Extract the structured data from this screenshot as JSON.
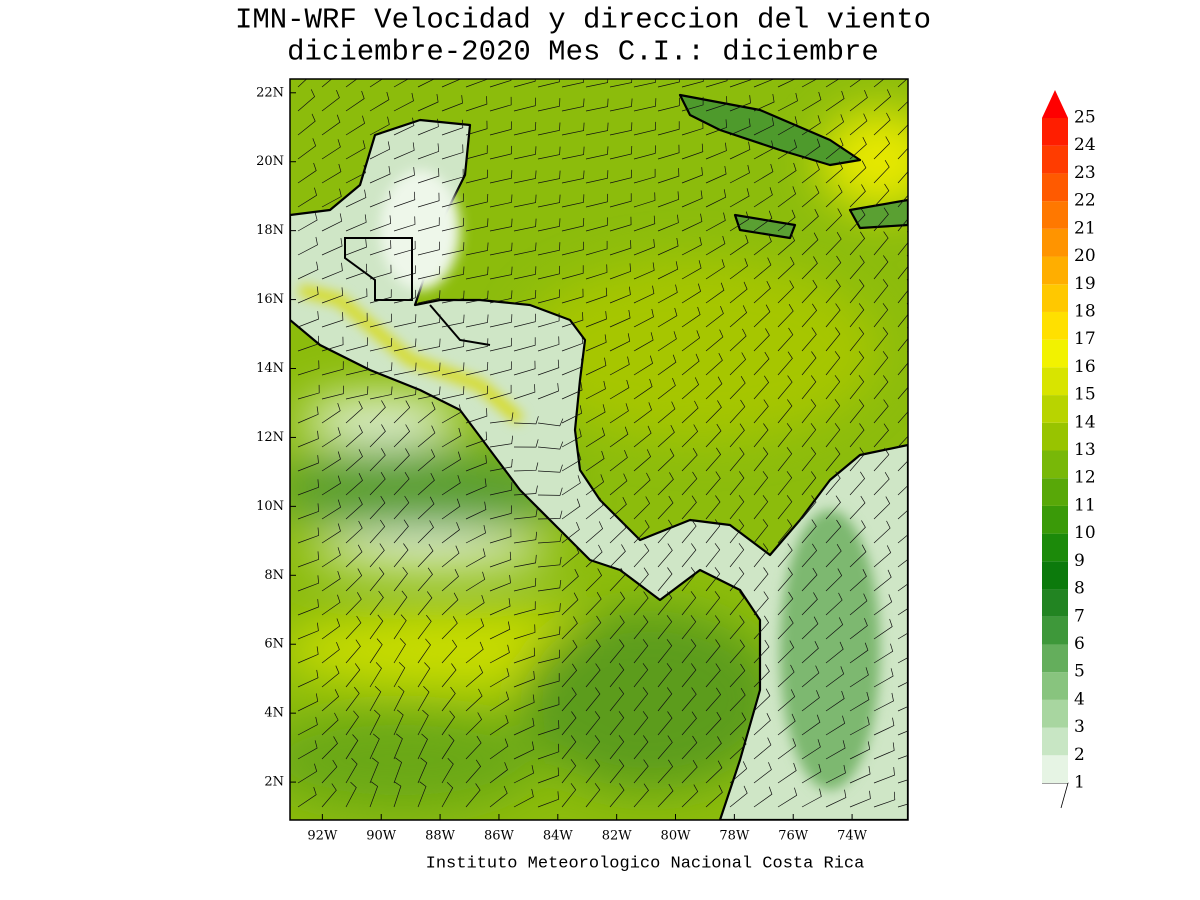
{
  "chart_data": {
    "type": "map",
    "title_lines": [
      "IMN-WRF Velocidad y direccion del viento",
      "diciembre-2020 Mes C.I.: diciembre"
    ],
    "source": "Instituto Meteorologico Nacional Costa Rica",
    "xlim": [
      -93.1,
      -72.1
    ],
    "ylim": [
      0.9,
      22.4
    ],
    "xticks": [
      {
        "value": -92,
        "label": "92W"
      },
      {
        "value": -90,
        "label": "90W"
      },
      {
        "value": -88,
        "label": "88W"
      },
      {
        "value": -86,
        "label": "86W"
      },
      {
        "value": -84,
        "label": "84W"
      },
      {
        "value": -82,
        "label": "82W"
      },
      {
        "value": -80,
        "label": "80W"
      },
      {
        "value": -78,
        "label": "78W"
      },
      {
        "value": -76,
        "label": "76W"
      },
      {
        "value": -74,
        "label": "74W"
      }
    ],
    "yticks": [
      {
        "value": 2,
        "label": "2N"
      },
      {
        "value": 4,
        "label": "4N"
      },
      {
        "value": 6,
        "label": "6N"
      },
      {
        "value": 8,
        "label": "8N"
      },
      {
        "value": 10,
        "label": "10N"
      },
      {
        "value": 12,
        "label": "12N"
      },
      {
        "value": 14,
        "label": "14N"
      },
      {
        "value": 16,
        "label": "16N"
      },
      {
        "value": 18,
        "label": "18N"
      },
      {
        "value": 20,
        "label": "20N"
      },
      {
        "value": 22,
        "label": "22N"
      }
    ],
    "colorbar": {
      "levels": [
        1,
        2,
        3,
        4,
        5,
        6,
        7,
        8,
        9,
        10,
        11,
        12,
        13,
        14,
        15,
        16,
        17,
        18,
        19,
        20,
        21,
        22,
        23,
        24,
        25
      ],
      "colors": [
        "#e6f4e4",
        "#c8e6c4",
        "#a8d6a0",
        "#88c47e",
        "#64ae5c",
        "#3e983a",
        "#228422",
        "#0c7a0c",
        "#1c8a0a",
        "#3a9a08",
        "#58a808",
        "#78b808",
        "#98c400",
        "#b8d400",
        "#d8e400",
        "#f2f200",
        "#ffe000",
        "#ffc800",
        "#ffae00",
        "#ff9400",
        "#ff7800",
        "#ff5a00",
        "#ff3c00",
        "#ff1e00",
        "#ff0000"
      ]
    }
  }
}
